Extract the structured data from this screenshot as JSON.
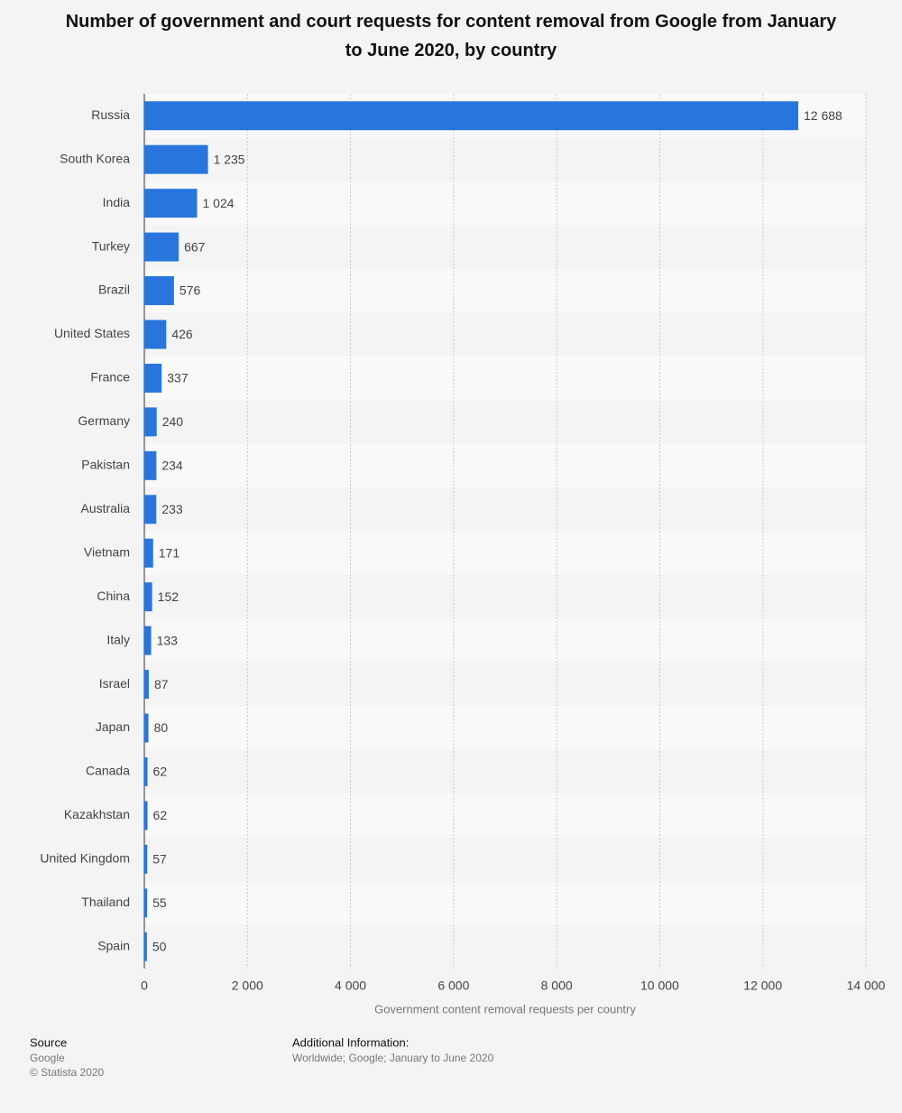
{
  "chart_data": {
    "type": "hbar",
    "title": "Number of government and court requests for content removal from Google from January to June 2020, by country",
    "categories": [
      "Russia",
      "South Korea",
      "India",
      "Turkey",
      "Brazil",
      "United States",
      "France",
      "Germany",
      "Pakistan",
      "Australia",
      "Vietnam",
      "China",
      "Italy",
      "Israel",
      "Japan",
      "Canada",
      "Kazakhstan",
      "United Kingdom",
      "Thailand",
      "Spain"
    ],
    "values": [
      12688,
      1235,
      1024,
      667,
      576,
      426,
      337,
      240,
      234,
      233,
      171,
      152,
      133,
      87,
      80,
      62,
      62,
      57,
      55,
      50
    ],
    "value_labels": [
      "12 688",
      "1 235",
      "1 024",
      "667",
      "576",
      "426",
      "337",
      "240",
      "234",
      "233",
      "171",
      "152",
      "133",
      "87",
      "80",
      "62",
      "62",
      "57",
      "55",
      "50"
    ],
    "color": "#2876dd",
    "xlim": [
      0,
      14000
    ],
    "xticks": [
      0,
      {
        "value": 2000,
        "label": "2 000"
      },
      {
        "value": 4000,
        "label": "4 000"
      },
      {
        "value": 6000,
        "label": "6 000"
      },
      {
        "value": 8000,
        "label": "8 000"
      },
      {
        "value": 10000,
        "label": "10 000"
      },
      {
        "value": 12000,
        "label": "12 000"
      },
      {
        "value": 14000,
        "label": "14 000"
      }
    ],
    "xlabel": "Government content removal requests per country",
    "grid": true
  },
  "footer": {
    "source_title": "Source",
    "source": "Google",
    "copyright": "© Statista 2020",
    "info_title": "Additional Information:",
    "info": "Worldwide; Google; January to June 2020"
  }
}
